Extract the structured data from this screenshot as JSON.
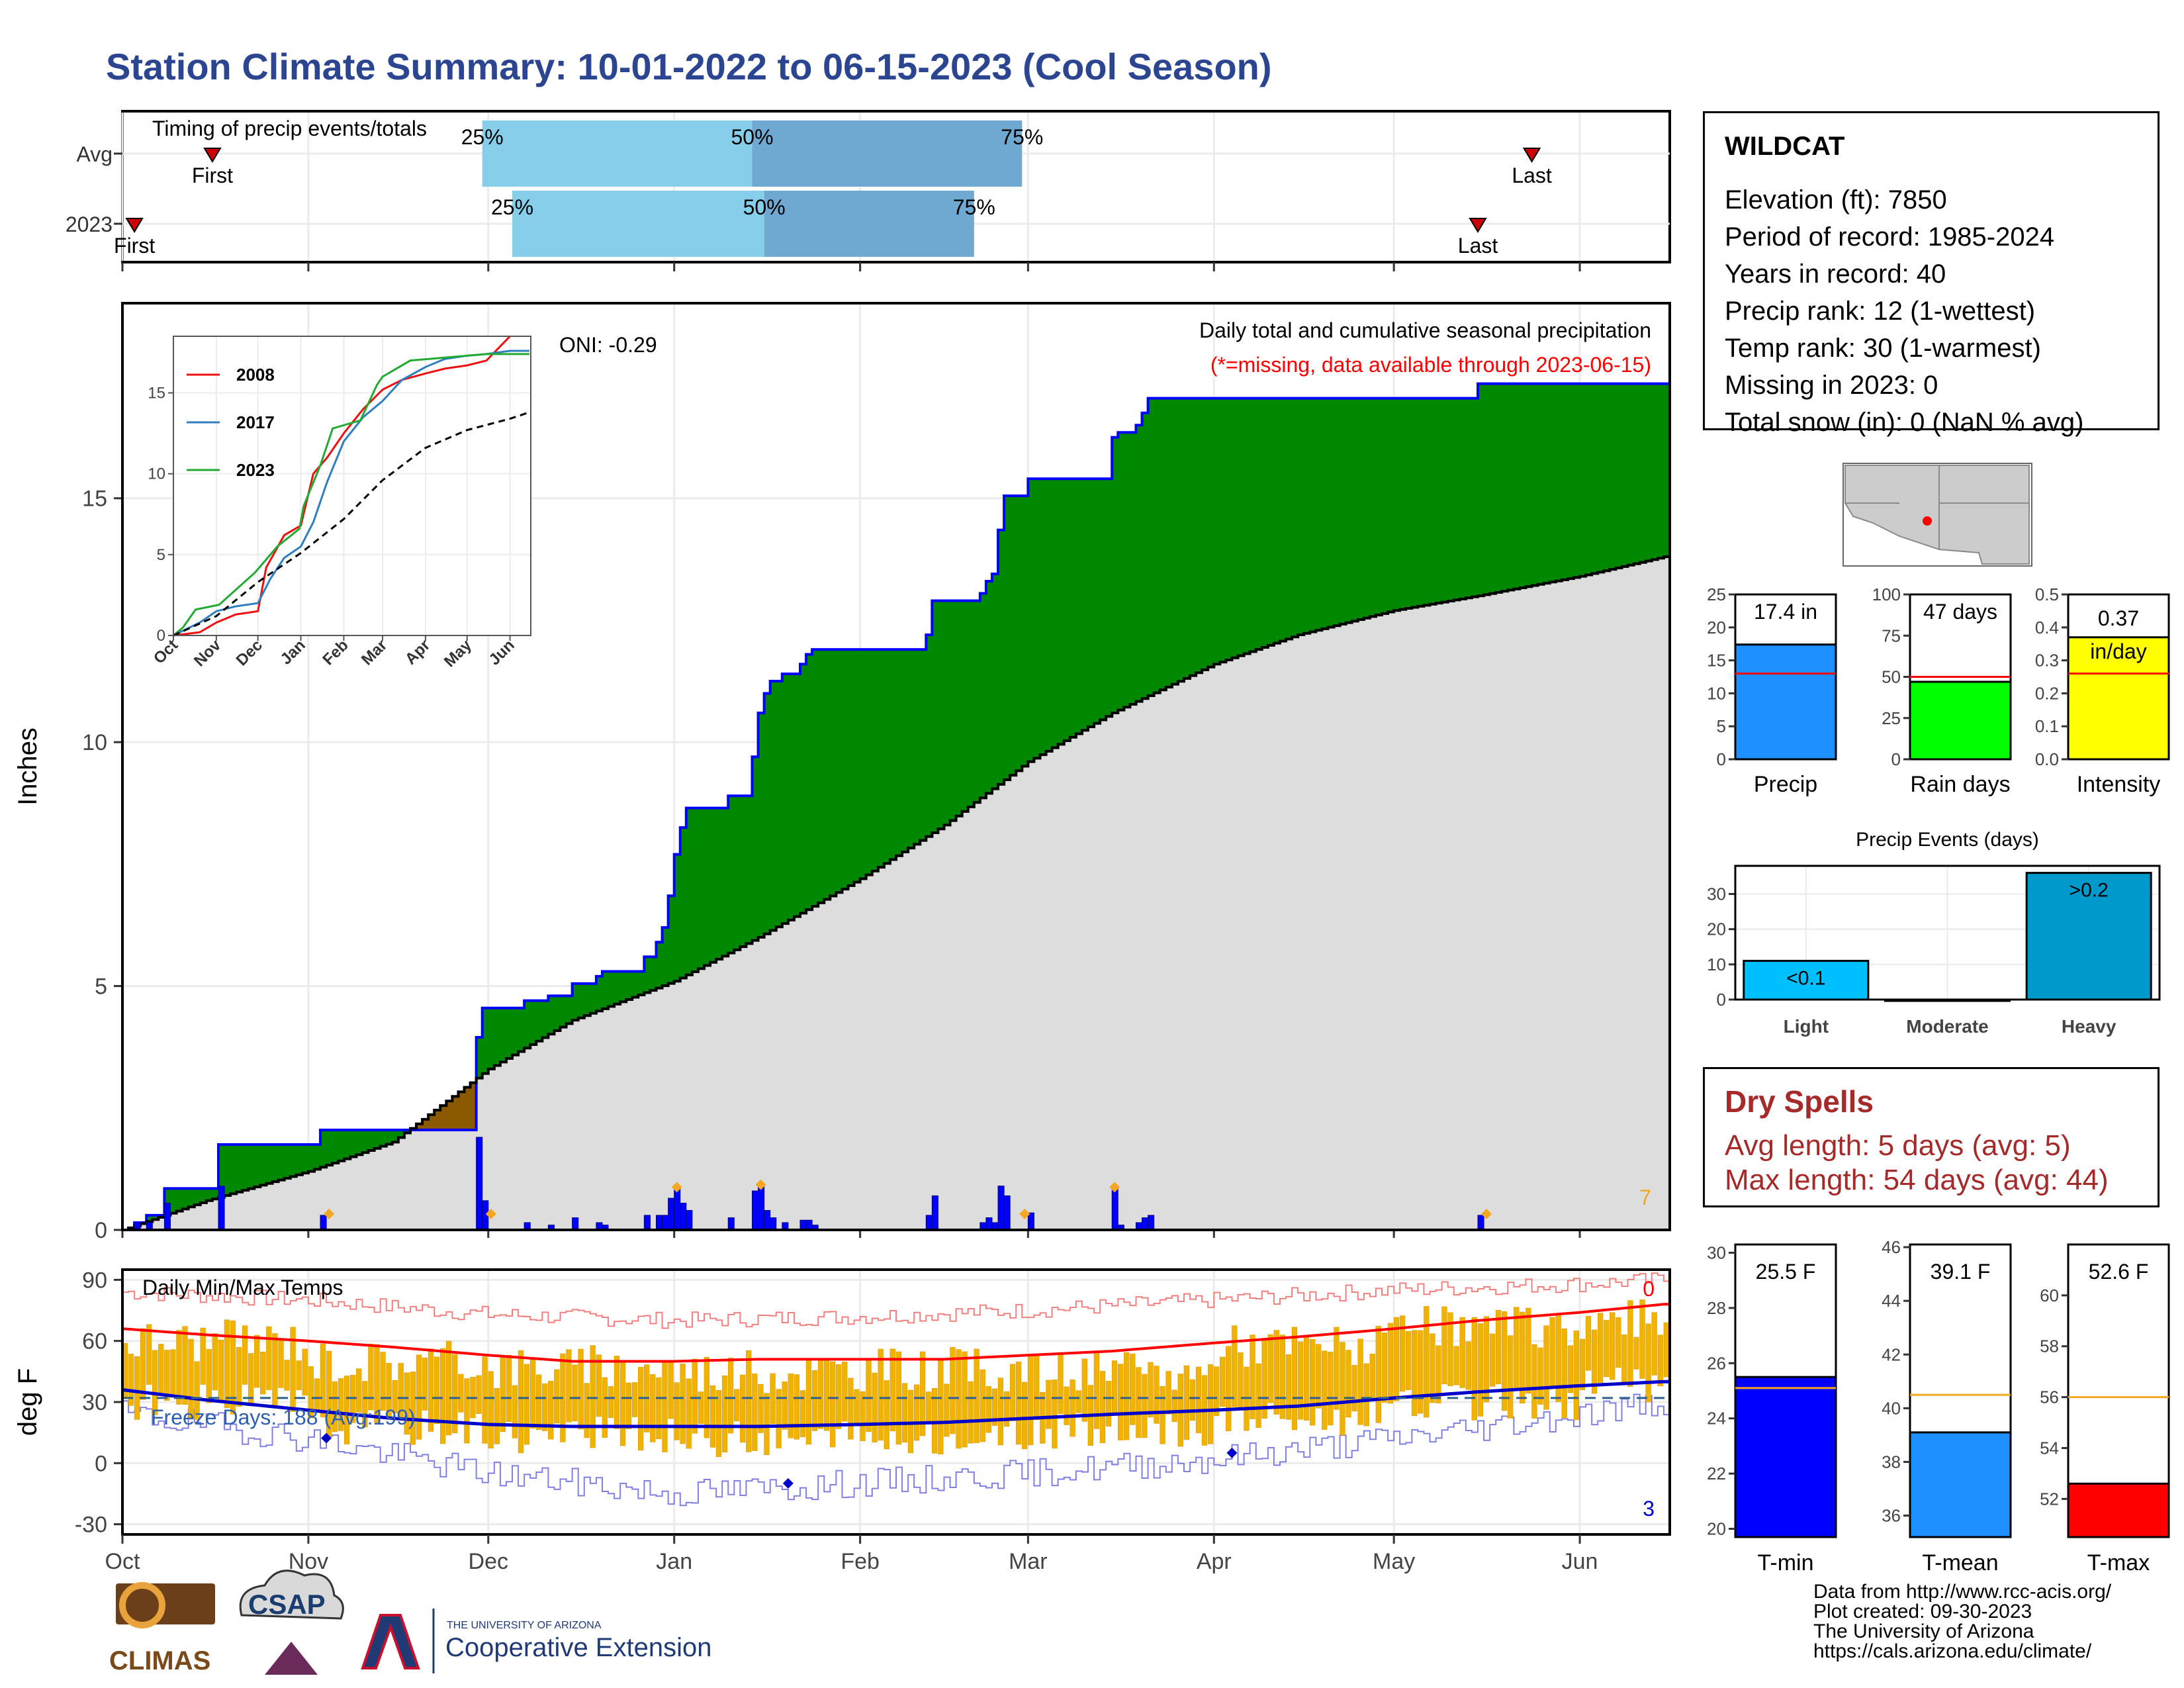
{
  "title": "Station Climate Summary: 10-01-2022 to 06-15-2023 (Cool Season)",
  "station": {
    "name": "WILDCAT",
    "lines": [
      "Elevation (ft): 7850",
      "Period of record: 1985-2024",
      "Years in record: 40",
      "Precip rank: 12 (1-wettest)",
      "Temp rank: 30 (1-warmest)",
      "Missing in 2023: 0",
      "Total snow (in): 0 (NaN % avg)"
    ]
  },
  "dry_spells": {
    "heading": "Dry Spells",
    "avg": "Avg length: 5 days (avg: 5)",
    "max": "Max length: 54 days (avg: 44)"
  },
  "credits": [
    "Data from http://www.rcc-acis.org/",
    "Plot created: 09-30-2023",
    "The University of Arizona",
    "https://cals.arizona.edu/climate/"
  ],
  "logos": {
    "climas": "CLIMAS",
    "csap": "CSAP",
    "ua_small": "THE UNIVERSITY OF ARIZONA",
    "ua_big": "Cooperative Extension"
  },
  "colors": {
    "title": "#2b4590",
    "green": "#008800",
    "brown": "#8b5a00",
    "gray_fill": "#dddddd",
    "bars": "#0000ff",
    "amber": "#f5a623",
    "red": "#ff0000",
    "blue": "#0000cc"
  },
  "chart_data": [
    {
      "id": "timing",
      "type": "range",
      "title": "Timing of precip events/totals",
      "rows": [
        {
          "label": "Avg",
          "first": "10-16",
          "p25": "11-30",
          "p50": "01-14",
          "p75": "02-28",
          "last": "05-24",
          "first_label": "First",
          "last_label": "Last"
        },
        {
          "label": "2023",
          "first": "10-03",
          "p25": "12-05",
          "p50": "01-16",
          "p75": "02-20",
          "last": "05-15",
          "first_label": "First",
          "last_label": "Last"
        }
      ],
      "pct_labels": [
        "25%",
        "50%",
        "75%"
      ]
    },
    {
      "id": "precip",
      "type": "area",
      "ylabel": "Inches",
      "annotation": "Daily total and cumulative seasonal precipitation",
      "note": "(*=missing, data available through 2023-06-15)",
      "oni": "ONI: -0.29",
      "corner_count": "7",
      "ylim": [
        0,
        19
      ],
      "yticks": [
        0,
        5,
        10,
        15
      ],
      "months": [
        "Oct",
        "Nov",
        "Dec",
        "Jan",
        "Feb",
        "Mar",
        "Apr",
        "May",
        "Jun"
      ],
      "month_starts": [
        "10-01",
        "11-01",
        "12-01",
        "01-01",
        "02-01",
        "03-01",
        "04-01",
        "05-01",
        "06-01"
      ],
      "end_date": "06-15",
      "avg_cumulative": [
        [
          "10-01",
          0.0
        ],
        [
          "10-15",
          0.6
        ],
        [
          "11-01",
          1.2
        ],
        [
          "11-15",
          1.8
        ],
        [
          "12-01",
          3.3
        ],
        [
          "12-15",
          4.3
        ],
        [
          "01-01",
          5.1
        ],
        [
          "01-15",
          6.0
        ],
        [
          "02-01",
          7.2
        ],
        [
          "02-15",
          8.3
        ],
        [
          "03-01",
          9.6
        ],
        [
          "03-15",
          10.6
        ],
        [
          "04-01",
          11.6
        ],
        [
          "04-15",
          12.2
        ],
        [
          "05-01",
          12.7
        ],
        [
          "05-15",
          13.0
        ],
        [
          "06-01",
          13.4
        ],
        [
          "06-15",
          13.8
        ]
      ],
      "events_2023": [
        [
          "10-03",
          0.15
        ],
        [
          "10-05",
          0.15
        ],
        [
          "10-08",
          0.55
        ],
        [
          "10-17",
          0.9
        ],
        [
          "11-03",
          0.3
        ],
        [
          "11-29",
          1.9
        ],
        [
          "11-30",
          0.6
        ],
        [
          "12-07",
          0.15
        ],
        [
          "12-11",
          0.1
        ],
        [
          "12-15",
          0.25
        ],
        [
          "12-19",
          0.15
        ],
        [
          "12-20",
          0.1
        ],
        [
          "12-27",
          0.3
        ],
        [
          "12-29",
          0.3
        ],
        [
          "12-30",
          0.3
        ],
        [
          "12-31",
          0.65
        ],
        [
          "01-01",
          0.85
        ],
        [
          "01-02",
          0.55
        ],
        [
          "01-03",
          0.4
        ],
        [
          "01-10",
          0.25
        ],
        [
          "01-14",
          0.8
        ],
        [
          "01-15",
          0.9
        ],
        [
          "01-16",
          0.4
        ],
        [
          "01-17",
          0.25
        ],
        [
          "01-19",
          0.15
        ],
        [
          "01-22",
          0.2
        ],
        [
          "01-23",
          0.2
        ],
        [
          "01-24",
          0.1
        ],
        [
          "02-12",
          0.3
        ],
        [
          "02-13",
          0.7
        ],
        [
          "02-21",
          0.15
        ],
        [
          "02-22",
          0.25
        ],
        [
          "02-23",
          0.15
        ],
        [
          "02-24",
          0.9
        ],
        [
          "02-25",
          0.7
        ],
        [
          "03-01",
          0.35
        ],
        [
          "03-15",
          0.85
        ],
        [
          "03-16",
          0.1
        ],
        [
          "03-19",
          0.15
        ],
        [
          "03-20",
          0.25
        ],
        [
          "03-21",
          0.3
        ],
        [
          "05-15",
          0.3
        ]
      ],
      "diamond_dates": [
        "11-04",
        "12-01",
        "01-01",
        "01-15",
        "02-28",
        "03-15",
        "05-16"
      ],
      "inset": {
        "type": "line",
        "ylim": [
          0,
          18.5
        ],
        "yticks": [
          0,
          5,
          10,
          15
        ],
        "months": [
          "Oct",
          "Nov",
          "Dec",
          "Jan",
          "Feb",
          "Mar",
          "Apr",
          "May",
          "Jun"
        ],
        "series": [
          {
            "name": "2008",
            "color": "#ee1111",
            "points": [
              [
                "10-01",
                0.0
              ],
              [
                "10-20",
                0.2
              ],
              [
                "11-01",
                0.8
              ],
              [
                "11-15",
                1.3
              ],
              [
                "12-01",
                1.5
              ],
              [
                "12-07",
                4.2
              ],
              [
                "12-20",
                6.2
              ],
              [
                "01-01",
                6.8
              ],
              [
                "01-10",
                10.0
              ],
              [
                "01-20",
                11.0
              ],
              [
                "02-01",
                12.5
              ],
              [
                "02-15",
                14.0
              ],
              [
                "03-01",
                15.2
              ],
              [
                "03-15",
                15.8
              ],
              [
                "04-01",
                16.2
              ],
              [
                "04-15",
                16.5
              ],
              [
                "05-01",
                16.7
              ],
              [
                "05-15",
                17.0
              ],
              [
                "06-01",
                18.5
              ]
            ]
          },
          {
            "name": "2017",
            "color": "#2f7fc0",
            "points": [
              [
                "10-01",
                0.0
              ],
              [
                "10-20",
                0.8
              ],
              [
                "11-01",
                1.5
              ],
              [
                "11-15",
                1.8
              ],
              [
                "12-01",
                2.0
              ],
              [
                "12-10",
                3.5
              ],
              [
                "12-20",
                4.8
              ],
              [
                "01-01",
                5.5
              ],
              [
                "01-10",
                7.0
              ],
              [
                "01-20",
                9.5
              ],
              [
                "02-01",
                12.0
              ],
              [
                "02-15",
                13.5
              ],
              [
                "03-01",
                14.5
              ],
              [
                "03-15",
                15.8
              ],
              [
                "04-01",
                16.6
              ],
              [
                "04-15",
                17.1
              ],
              [
                "05-01",
                17.3
              ],
              [
                "05-15",
                17.4
              ],
              [
                "06-01",
                17.6
              ],
              [
                "06-15",
                17.6
              ]
            ]
          },
          {
            "name": "2023",
            "color": "#22aa33",
            "points": [
              [
                "10-01",
                0.0
              ],
              [
                "10-08",
                0.5
              ],
              [
                "10-17",
                1.6
              ],
              [
                "11-03",
                1.9
              ],
              [
                "11-29",
                3.9
              ],
              [
                "12-15",
                5.5
              ],
              [
                "12-31",
                6.6
              ],
              [
                "01-03",
                8.0
              ],
              [
                "01-15",
                10.5
              ],
              [
                "01-24",
                12.8
              ],
              [
                "02-13",
                13.3
              ],
              [
                "02-25",
                15.5
              ],
              [
                "03-01",
                16.0
              ],
              [
                "03-21",
                17.0
              ],
              [
                "05-15",
                17.4
              ],
              [
                "06-15",
                17.4
              ]
            ]
          },
          {
            "name": "Avg",
            "color": "#000000",
            "dashed": true,
            "points": [
              [
                "10-01",
                0.0
              ],
              [
                "11-01",
                1.2
              ],
              [
                "12-01",
                3.3
              ],
              [
                "01-01",
                5.1
              ],
              [
                "02-01",
                7.2
              ],
              [
                "03-01",
                9.6
              ],
              [
                "04-01",
                11.6
              ],
              [
                "05-01",
                12.7
              ],
              [
                "06-01",
                13.4
              ],
              [
                "06-15",
                13.8
              ]
            ]
          }
        ]
      }
    },
    {
      "id": "temps",
      "type": "line",
      "annotation": "Daily Min/Max Temps",
      "ylabel": "deg F",
      "freeze_label": "Freeze Days: 188 (Avg:199)",
      "count_top": "0",
      "count_bottom": "3",
      "ylim": [
        -35,
        95
      ],
      "yticks": [
        -30,
        0,
        30,
        60,
        90
      ],
      "months": [
        "Oct",
        "Nov",
        "Dec",
        "Jan",
        "Feb",
        "Mar",
        "Apr",
        "May",
        "Jun"
      ],
      "freeze_line": 32,
      "avg_max": [
        [
          "10-01",
          66
        ],
        [
          "10-15",
          63
        ],
        [
          "11-01",
          60
        ],
        [
          "11-15",
          57
        ],
        [
          "12-01",
          53
        ],
        [
          "12-15",
          50
        ],
        [
          "01-01",
          50
        ],
        [
          "01-15",
          51
        ],
        [
          "02-01",
          51
        ],
        [
          "02-15",
          51
        ],
        [
          "03-01",
          53
        ],
        [
          "03-15",
          55
        ],
        [
          "04-01",
          59
        ],
        [
          "04-15",
          62
        ],
        [
          "05-01",
          66
        ],
        [
          "05-15",
          70
        ],
        [
          "06-01",
          74
        ],
        [
          "06-15",
          78
        ]
      ],
      "avg_min": [
        [
          "10-01",
          36
        ],
        [
          "10-15",
          31
        ],
        [
          "11-01",
          26
        ],
        [
          "11-15",
          22
        ],
        [
          "12-01",
          19
        ],
        [
          "12-15",
          18
        ],
        [
          "01-01",
          18
        ],
        [
          "01-15",
          18
        ],
        [
          "02-01",
          19
        ],
        [
          "02-15",
          20
        ],
        [
          "03-01",
          22
        ],
        [
          "03-15",
          24
        ],
        [
          "04-01",
          26
        ],
        [
          "04-15",
          28
        ],
        [
          "05-01",
          32
        ],
        [
          "05-15",
          35
        ],
        [
          "06-01",
          38
        ],
        [
          "06-15",
          40
        ]
      ],
      "record_max": [
        [
          "10-01",
          84
        ],
        [
          "11-01",
          80
        ],
        [
          "12-01",
          73
        ],
        [
          "01-01",
          70
        ],
        [
          "02-01",
          72
        ],
        [
          "03-01",
          75
        ],
        [
          "04-01",
          80
        ],
        [
          "05-01",
          85
        ],
        [
          "06-01",
          88
        ],
        [
          "06-15",
          90
        ]
      ],
      "record_min": [
        [
          "10-01",
          24
        ],
        [
          "11-01",
          12
        ],
        [
          "12-01",
          -5
        ],
        [
          "01-01",
          -15
        ],
        [
          "02-01",
          -10
        ],
        [
          "03-01",
          -5
        ],
        [
          "04-01",
          2
        ],
        [
          "05-01",
          12
        ],
        [
          "06-01",
          24
        ],
        [
          "06-15",
          30
        ]
      ],
      "obs_2023_monthly_max": [
        [
          "Oct",
          60
        ],
        [
          "Nov",
          50
        ],
        [
          "Dec",
          47
        ],
        [
          "Jan",
          45
        ],
        [
          "Feb",
          46
        ],
        [
          "Mar",
          44
        ],
        [
          "Apr",
          58
        ],
        [
          "May",
          66
        ],
        [
          "Jun",
          70
        ]
      ],
      "obs_2023_monthly_min": [
        [
          "Oct",
          30
        ],
        [
          "Nov",
          18
        ],
        [
          "Dec",
          14
        ],
        [
          "Jan",
          12
        ],
        [
          "Feb",
          12
        ],
        [
          "Mar",
          16
        ],
        [
          "Apr",
          22
        ],
        [
          "May",
          30
        ],
        [
          "Jun",
          38
        ]
      ],
      "diamond_dates": [
        "11-04",
        "01-20",
        "04-04"
      ]
    },
    {
      "id": "season_bars",
      "type": "bar",
      "panels": [
        {
          "label": "Precip",
          "value": 17.4,
          "avg": 13.0,
          "text": "17.4 in",
          "ylim": [
            0,
            25
          ],
          "yticks": [
            0,
            5,
            10,
            15,
            20,
            25
          ],
          "color": "#1e90ff"
        },
        {
          "label": "Rain days",
          "value": 47,
          "avg": 50,
          "text": "47 days",
          "ylim": [
            0,
            100
          ],
          "yticks": [
            0,
            25,
            50,
            75,
            100
          ],
          "color": "#00ff00"
        },
        {
          "label": "Intensity",
          "value": 0.37,
          "avg": 0.26,
          "text": "0.37",
          "unit": "in/day",
          "ylim": [
            0,
            0.5
          ],
          "yticks": [
            0.0,
            0.1,
            0.2,
            0.3,
            0.4,
            0.5
          ],
          "color": "#ffff00"
        }
      ]
    },
    {
      "id": "precip_events",
      "type": "bar",
      "title": "Precip Events (days)",
      "categories": [
        "Light",
        "Moderate",
        "Heavy"
      ],
      "values": [
        11,
        0,
        36
      ],
      "bar_labels": [
        "<0.1",
        "",
        ">0.2"
      ],
      "ylim": [
        0,
        38
      ],
      "yticks": [
        0,
        10,
        20,
        30
      ],
      "colors": [
        "#00bfff",
        "#00bfff",
        "#0099cc"
      ]
    },
    {
      "id": "temp_bars",
      "type": "bar",
      "panels": [
        {
          "label": "T-min",
          "value": 25.5,
          "avg": 25.1,
          "text": "25.5 F",
          "ylim": [
            19.7,
            30.3
          ],
          "yticks": [
            20,
            22,
            24,
            26,
            28,
            30
          ],
          "color": "#0000ff"
        },
        {
          "label": "T-mean",
          "value": 39.1,
          "avg": 40.5,
          "text": "39.1 F",
          "ylim": [
            35.2,
            46.1
          ],
          "yticks": [
            36,
            38,
            40,
            42,
            44,
            46
          ],
          "color": "#1e90ff"
        },
        {
          "label": "T-max",
          "value": 52.6,
          "avg": 56.0,
          "text": "52.6 F",
          "ylim": [
            50.5,
            62.0
          ],
          "yticks": [
            52,
            54,
            56,
            58,
            60
          ],
          "color": "#ff0000"
        }
      ]
    }
  ]
}
